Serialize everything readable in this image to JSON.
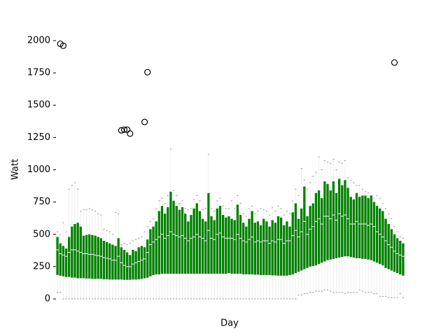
{
  "chart_data": {
    "type": "box",
    "ylabel": "Watt",
    "xlabel": "Day",
    "color": "#008000",
    "median_color": "#ffffff",
    "whisker_color": "#999999",
    "ylim": [
      -100,
      2100
    ],
    "yticks": [
      0,
      250,
      500,
      750,
      1000,
      1250,
      1500,
      1750,
      2000
    ],
    "q1": [
      185,
      180,
      175,
      170,
      170,
      165,
      165,
      160,
      160,
      160,
      158,
      158,
      155,
      155,
      155,
      155,
      152,
      152,
      150,
      150,
      150,
      150,
      150,
      148,
      148,
      148,
      150,
      150,
      152,
      155,
      160,
      165,
      175,
      185,
      190,
      190,
      195,
      195,
      195,
      195,
      195,
      195,
      195,
      195,
      195,
      195,
      195,
      195,
      195,
      195,
      195,
      195,
      195,
      195,
      195,
      195,
      195,
      195,
      195,
      200,
      195,
      195,
      195,
      195,
      190,
      190,
      190,
      190,
      188,
      188,
      185,
      185,
      185,
      185,
      182,
      182,
      180,
      180,
      180,
      180,
      185,
      190,
      200,
      210,
      220,
      230,
      240,
      250,
      255,
      260,
      270,
      280,
      290,
      300,
      305,
      310,
      315,
      320,
      325,
      330,
      330,
      325,
      320,
      315,
      315,
      310,
      310,
      305,
      300,
      290,
      280,
      270,
      260,
      240,
      230,
      220,
      210,
      200,
      190,
      180
    ],
    "median": [
      380,
      350,
      340,
      330,
      360,
      380,
      380,
      370,
      360,
      350,
      350,
      345,
      345,
      340,
      335,
      330,
      320,
      315,
      310,
      300,
      300,
      330,
      280,
      260,
      250,
      250,
      270,
      280,
      290,
      300,
      310,
      360,
      420,
      440,
      460,
      480,
      500,
      470,
      490,
      520,
      500,
      490,
      480,
      490,
      470,
      450,
      470,
      480,
      500,
      480,
      470,
      450,
      530,
      470,
      460,
      500,
      510,
      480,
      470,
      470,
      470,
      460,
      500,
      470,
      450,
      440,
      460,
      480,
      440,
      450,
      440,
      450,
      450,
      430,
      450,
      440,
      460,
      460,
      430,
      450,
      450,
      490,
      530,
      480,
      520,
      600,
      500,
      540,
      560,
      600,
      620,
      580,
      640,
      640,
      620,
      650,
      610,
      660,
      640,
      650,
      620,
      580,
      580,
      600,
      580,
      580,
      580,
      570,
      580,
      560,
      520,
      500,
      480,
      450,
      420,
      400,
      370,
      350,
      340,
      330
    ],
    "q3": [
      480,
      430,
      410,
      390,
      480,
      560,
      580,
      590,
      560,
      490,
      495,
      500,
      495,
      490,
      480,
      470,
      450,
      440,
      430,
      420,
      410,
      470,
      400,
      380,
      360,
      340,
      380,
      370,
      400,
      410,
      400,
      460,
      540,
      560,
      600,
      680,
      720,
      660,
      710,
      830,
      760,
      720,
      690,
      710,
      660,
      600,
      650,
      700,
      740,
      680,
      620,
      600,
      820,
      640,
      610,
      700,
      720,
      650,
      630,
      640,
      620,
      610,
      730,
      650,
      590,
      560,
      620,
      680,
      590,
      600,
      570,
      620,
      600,
      560,
      610,
      590,
      640,
      630,
      570,
      600,
      560,
      670,
      740,
      620,
      700,
      870,
      640,
      720,
      740,
      820,
      840,
      780,
      910,
      890,
      840,
      910,
      820,
      930,
      880,
      920,
      860,
      790,
      770,
      820,
      790,
      800,
      800,
      780,
      800,
      750,
      720,
      700,
      680,
      620,
      580,
      540,
      500,
      470,
      450,
      430
    ],
    "whislo": [
      50,
      50,
      0,
      0,
      0,
      0,
      0,
      0,
      0,
      0,
      0,
      0,
      0,
      0,
      0,
      0,
      0,
      0,
      0,
      0,
      0,
      0,
      0,
      0,
      0,
      0,
      0,
      0,
      0,
      0,
      0,
      0,
      0,
      0,
      0,
      0,
      0,
      0,
      0,
      0,
      0,
      0,
      0,
      0,
      0,
      0,
      0,
      0,
      0,
      0,
      0,
      0,
      0,
      0,
      0,
      0,
      0,
      0,
      0,
      0,
      0,
      0,
      0,
      0,
      0,
      0,
      0,
      0,
      0,
      0,
      0,
      0,
      0,
      0,
      0,
      0,
      0,
      0,
      0,
      0,
      0,
      0,
      0,
      30,
      30,
      40,
      40,
      50,
      50,
      60,
      60,
      60,
      70,
      70,
      60,
      50,
      50,
      50,
      50,
      40,
      50,
      50,
      50,
      50,
      70,
      60,
      50,
      50,
      50,
      40,
      40,
      20,
      20,
      20,
      10,
      10,
      10,
      10,
      40,
      10
    ],
    "whishi": [
      520,
      500,
      590,
      520,
      850,
      880,
      900,
      850,
      680,
      690,
      690,
      700,
      690,
      680,
      660,
      650,
      540,
      530,
      520,
      500,
      670,
      660,
      420,
      430,
      420,
      430,
      450,
      460,
      470,
      480,
      520,
      560,
      600,
      620,
      700,
      760,
      780,
      740,
      800,
      1160,
      840,
      800,
      740,
      760,
      700,
      690,
      700,
      770,
      800,
      760,
      690,
      700,
      1120,
      700,
      680,
      760,
      780,
      720,
      700,
      700,
      760,
      700,
      800,
      740,
      660,
      640,
      700,
      720,
      660,
      680,
      700,
      690,
      680,
      650,
      710,
      680,
      720,
      700,
      650,
      680,
      660,
      760,
      850,
      800,
      1010,
      920,
      850,
      900,
      950,
      980,
      1100,
      1000,
      1070,
      1060,
      1050,
      1080,
      1000,
      1060,
      1050,
      1070,
      940,
      920,
      900,
      880,
      880,
      850,
      830,
      820,
      800,
      780,
      800,
      780,
      740,
      700,
      660,
      620,
      560,
      520,
      480,
      470
    ],
    "fliers": [
      [],
      [
        1975
      ],
      [
        1960
      ],
      [],
      [],
      [],
      [],
      [],
      [],
      [],
      [],
      [],
      [],
      [],
      [],
      [],
      [],
      [],
      [],
      [],
      [],
      [],
      [
        1305
      ],
      [
        1310
      ],
      [
        1310
      ],
      [
        1280
      ],
      [],
      [],
      [],
      [],
      [
        1370
      ],
      [
        1755
      ],
      [],
      [],
      [],
      [],
      [],
      [],
      [],
      [],
      [],
      [],
      [],
      [],
      [],
      [],
      [],
      [],
      [],
      [],
      [],
      [],
      [],
      [],
      [],
      [],
      [],
      [],
      [],
      [],
      [],
      [],
      [],
      [],
      [],
      [],
      [],
      [],
      [],
      [],
      [],
      [],
      [],
      [],
      [],
      [],
      [],
      [],
      [],
      [],
      [],
      [],
      [],
      [],
      [],
      [],
      [],
      [],
      [],
      [],
      [],
      [],
      [],
      [],
      [],
      [],
      [],
      [],
      [],
      [],
      [],
      [],
      [],
      [],
      [],
      [],
      [],
      [],
      [],
      [],
      [],
      [],
      [],
      [],
      [],
      [],
      [
        1830
      ],
      [],
      [],
      []
    ]
  }
}
